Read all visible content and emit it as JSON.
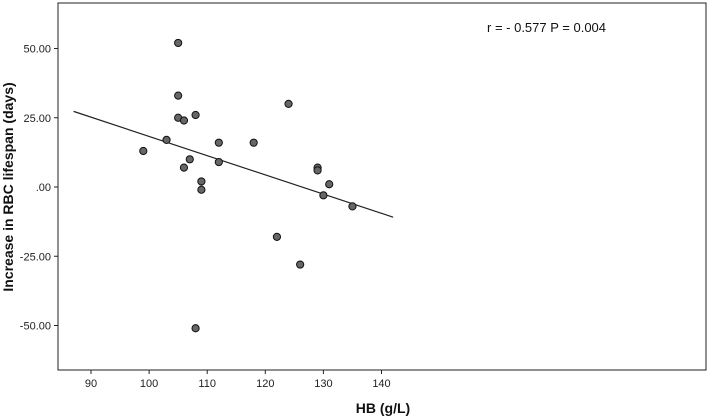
{
  "chart_data": {
    "type": "scatter",
    "title": "",
    "xlabel": "HB (g/L)",
    "ylabel": "Increase in RBC lifespan (days)",
    "xlim": [
      87,
      142
    ],
    "ylim": [
      -62,
      67
    ],
    "x_ticks": [
      90,
      100,
      110,
      120,
      130,
      140
    ],
    "x_tick_labels": [
      "90",
      "100",
      "110",
      "120",
      "130",
      "140"
    ],
    "y_ticks": [
      50,
      25,
      0,
      -25,
      -50
    ],
    "y_tick_labels": [
      "50.00",
      "25.00",
      ".00",
      "-25.00",
      "-50.00"
    ],
    "grid": false,
    "annotation": "r = - 0.577 P = 0.004",
    "fit_line": {
      "x": [
        87,
        142
      ],
      "y": [
        27.3,
        -10.9
      ]
    },
    "points": [
      {
        "x": 99,
        "y": 13
      },
      {
        "x": 103,
        "y": 17
      },
      {
        "x": 105,
        "y": 52
      },
      {
        "x": 105,
        "y": 33
      },
      {
        "x": 105,
        "y": 25
      },
      {
        "x": 106,
        "y": 24
      },
      {
        "x": 106,
        "y": 7
      },
      {
        "x": 107,
        "y": 10
      },
      {
        "x": 108,
        "y": 26
      },
      {
        "x": 108,
        "y": -51
      },
      {
        "x": 109,
        "y": 2
      },
      {
        "x": 109,
        "y": -1
      },
      {
        "x": 112,
        "y": 16
      },
      {
        "x": 112,
        "y": 9
      },
      {
        "x": 118,
        "y": 16
      },
      {
        "x": 122,
        "y": -18
      },
      {
        "x": 124,
        "y": 30
      },
      {
        "x": 126,
        "y": -28
      },
      {
        "x": 129,
        "y": 7
      },
      {
        "x": 129,
        "y": 6
      },
      {
        "x": 130,
        "y": -3
      },
      {
        "x": 131,
        "y": 1
      },
      {
        "x": 135,
        "y": -7
      }
    ],
    "colors": {
      "point_fill": "#666666",
      "point_stroke": "#111111",
      "line": "#222222",
      "axis": "#222222"
    }
  }
}
